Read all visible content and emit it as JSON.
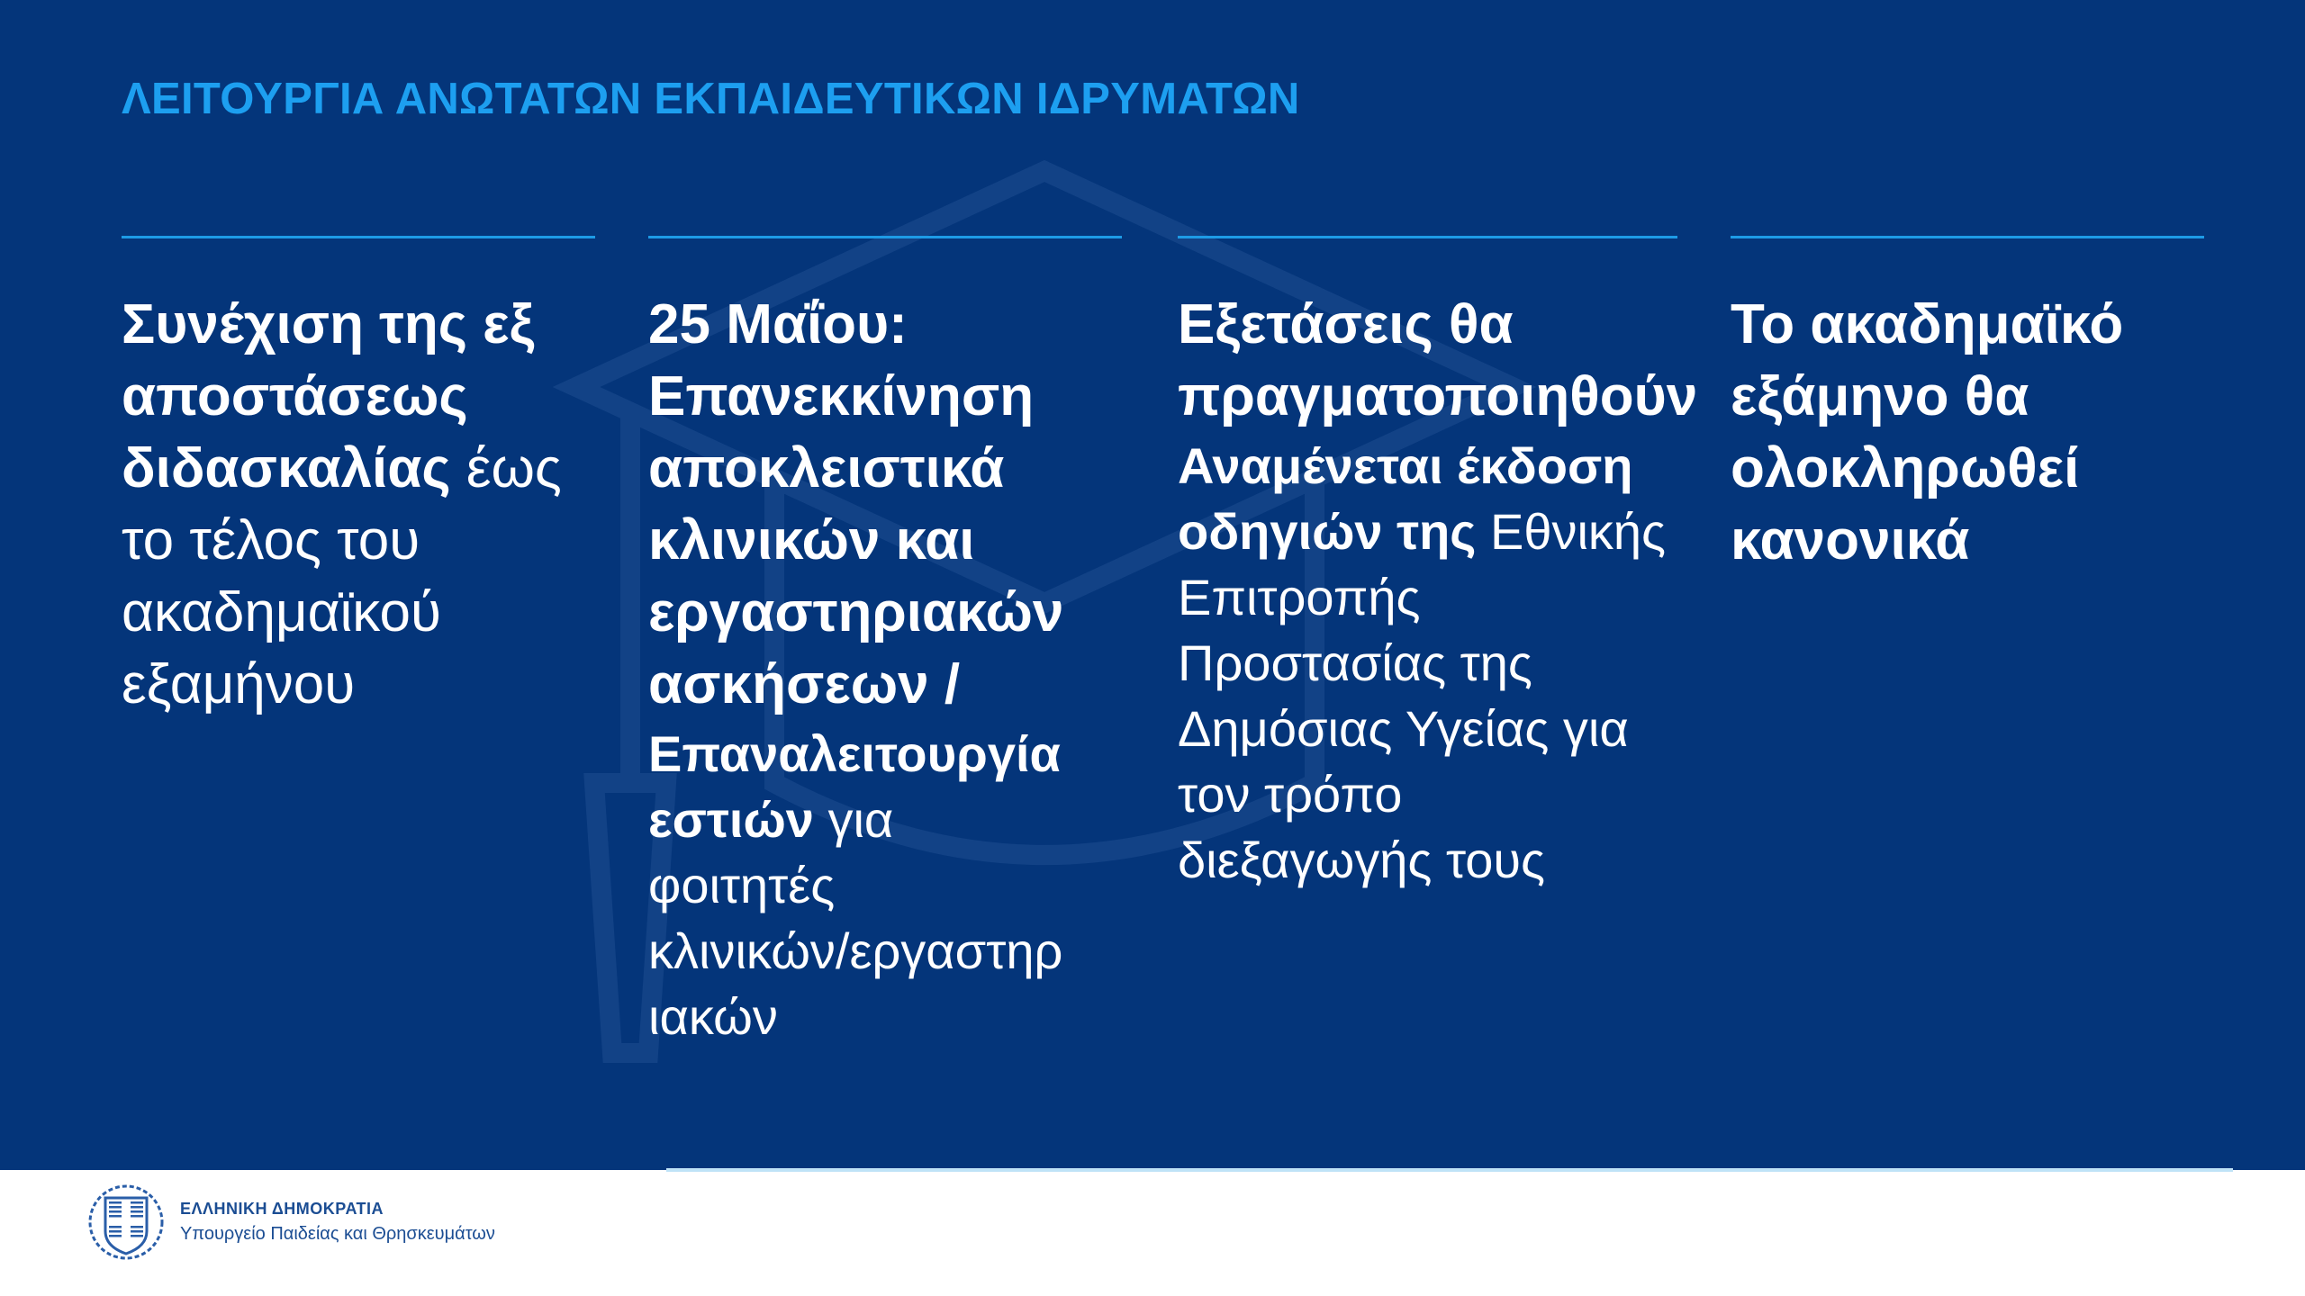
{
  "title": "ΛΕΙΤΟΥΡΓΙΑ ΑΝΩΤΑΤΩΝ ΕΚΠΑΙΔΕΥΤΙΚΩΝ ΙΔΡΥΜΑΤΩΝ",
  "colors": {
    "background": "#04357a",
    "title": "#1d9ff0",
    "rule": "#1d9be6",
    "footer_text": "#1b4d93"
  },
  "columns": [
    {
      "lines": [
        [
          {
            "t": "Συνέχιση της εξ",
            "b": true
          }
        ],
        [
          {
            "t": "αποστάσεως",
            "b": true
          }
        ],
        [
          {
            "t": "διδασκαλίας",
            "b": true
          },
          {
            "t": " έως",
            "b": false
          }
        ],
        [
          {
            "t": "το τέλος του",
            "b": false
          }
        ],
        [
          {
            "t": "ακαδημαϊκού",
            "b": false
          }
        ],
        [
          {
            "t": "εξαμήνου",
            "b": false
          }
        ]
      ]
    },
    {
      "lines": [
        [
          {
            "t": "25 Μαΐου:",
            "b": true
          }
        ],
        [
          {
            "t": "Επανεκκίνηση",
            "b": true
          }
        ],
        [
          {
            "t": "αποκλειστικά",
            "b": true
          }
        ],
        [
          {
            "t": "κλινικών και",
            "b": true
          }
        ],
        [
          {
            "t": "εργαστηριακών",
            "b": true
          }
        ],
        [
          {
            "t": "ασκήσεων /",
            "b": true
          }
        ],
        [
          {
            "t": "Επαναλειτουργία",
            "b": true,
            "s": true
          }
        ],
        [
          {
            "t": "εστιών",
            "b": true,
            "s": true
          },
          {
            "t": " για",
            "b": false,
            "s": true
          }
        ],
        [
          {
            "t": "φοιτητές",
            "b": false,
            "s": true
          }
        ],
        [
          {
            "t": "κλινικών/εργαστηρ",
            "b": false,
            "s": true
          }
        ],
        [
          {
            "t": "ιακών",
            "b": false,
            "s": true
          }
        ]
      ]
    },
    {
      "lines": [
        [
          {
            "t": "Εξετάσεις θα",
            "b": true
          }
        ],
        [
          {
            "t": "πραγματοποιηθούν",
            "b": true
          }
        ],
        [
          {
            "t": "Αναμένεται έκδοση",
            "b": true,
            "s": true
          }
        ],
        [
          {
            "t": "οδηγιών της",
            "b": true,
            "s": true
          },
          {
            "t": " Εθνικής",
            "b": false,
            "s": true
          }
        ],
        [
          {
            "t": "Επιτροπής",
            "b": false,
            "s": true
          }
        ],
        [
          {
            "t": "Προστασίας της",
            "b": false,
            "s": true
          }
        ],
        [
          {
            "t": "Δημόσιας Υγείας για",
            "b": false,
            "s": true
          }
        ],
        [
          {
            "t": "τον τρόπο",
            "b": false,
            "s": true
          }
        ],
        [
          {
            "t": "διεξαγωγής τους",
            "b": false,
            "s": true
          }
        ]
      ]
    },
    {
      "lines": [
        [
          {
            "t": "Το ακαδημαϊκό",
            "b": true
          }
        ],
        [
          {
            "t": "εξάμηνο θα",
            "b": true
          }
        ],
        [
          {
            "t": "ολοκληρωθεί",
            "b": true
          }
        ],
        [
          {
            "t": "κανονικά",
            "b": true
          }
        ]
      ]
    }
  ],
  "footer": {
    "line1": "ΕΛΛΗΝΙΚΗ ΔΗΜΟΚΡΑΤΙΑ",
    "line2": "Υπουργείο Παιδείας και Θρησκευμάτων",
    "logo_icon": "greek-coat-of-arms-icon"
  }
}
